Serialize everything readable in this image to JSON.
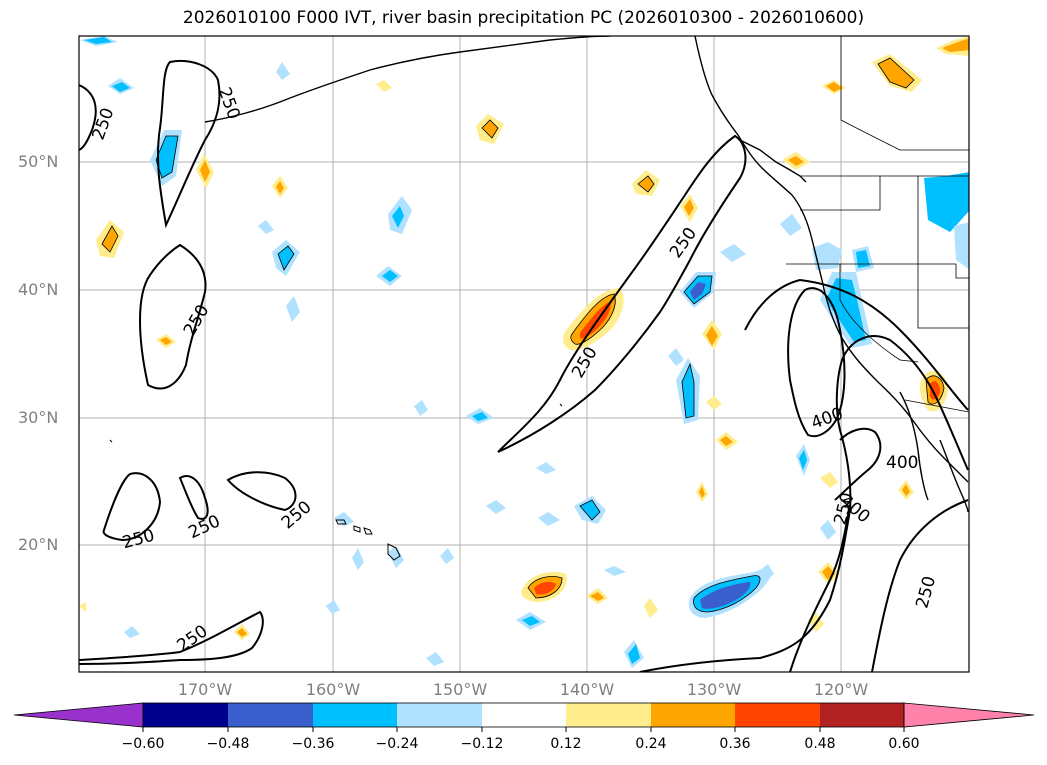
{
  "title": "2026010100 F000 IVT, river basin precipitation PC (2026010300 - 2026010600)",
  "lat_labels": [
    "50°N",
    "40°N",
    "30°N",
    "20°N"
  ],
  "lon_labels": [
    "170°W",
    "160°W",
    "150°W",
    "140°W",
    "130°W",
    "120°W"
  ],
  "contour_labels": [
    "250",
    "250",
    "250",
    "250",
    "250",
    "250",
    "250",
    "250",
    "250",
    "250",
    "400",
    "400",
    "400",
    "250"
  ],
  "colorbar": {
    "ticks": [
      "−0.60",
      "−0.48",
      "−0.36",
      "−0.24",
      "−0.12",
      "0.12",
      "0.24",
      "0.36",
      "0.48",
      "0.60"
    ],
    "colors": [
      "#9932cc",
      "#00008b",
      "#3a5fcd",
      "#00bfff",
      "#b0e2ff",
      "#ffffff",
      "#ffec8b",
      "#ffa500",
      "#ff4500",
      "#b22222",
      "#ff82ab"
    ]
  },
  "colors": {
    "pos_light": "#ffec8b",
    "pos_mid": "#ffa500",
    "pos_high": "#ff4500",
    "neg_light": "#b0e2ff",
    "neg_mid": "#00bfff",
    "neg_high": "#3a5fcd"
  }
}
